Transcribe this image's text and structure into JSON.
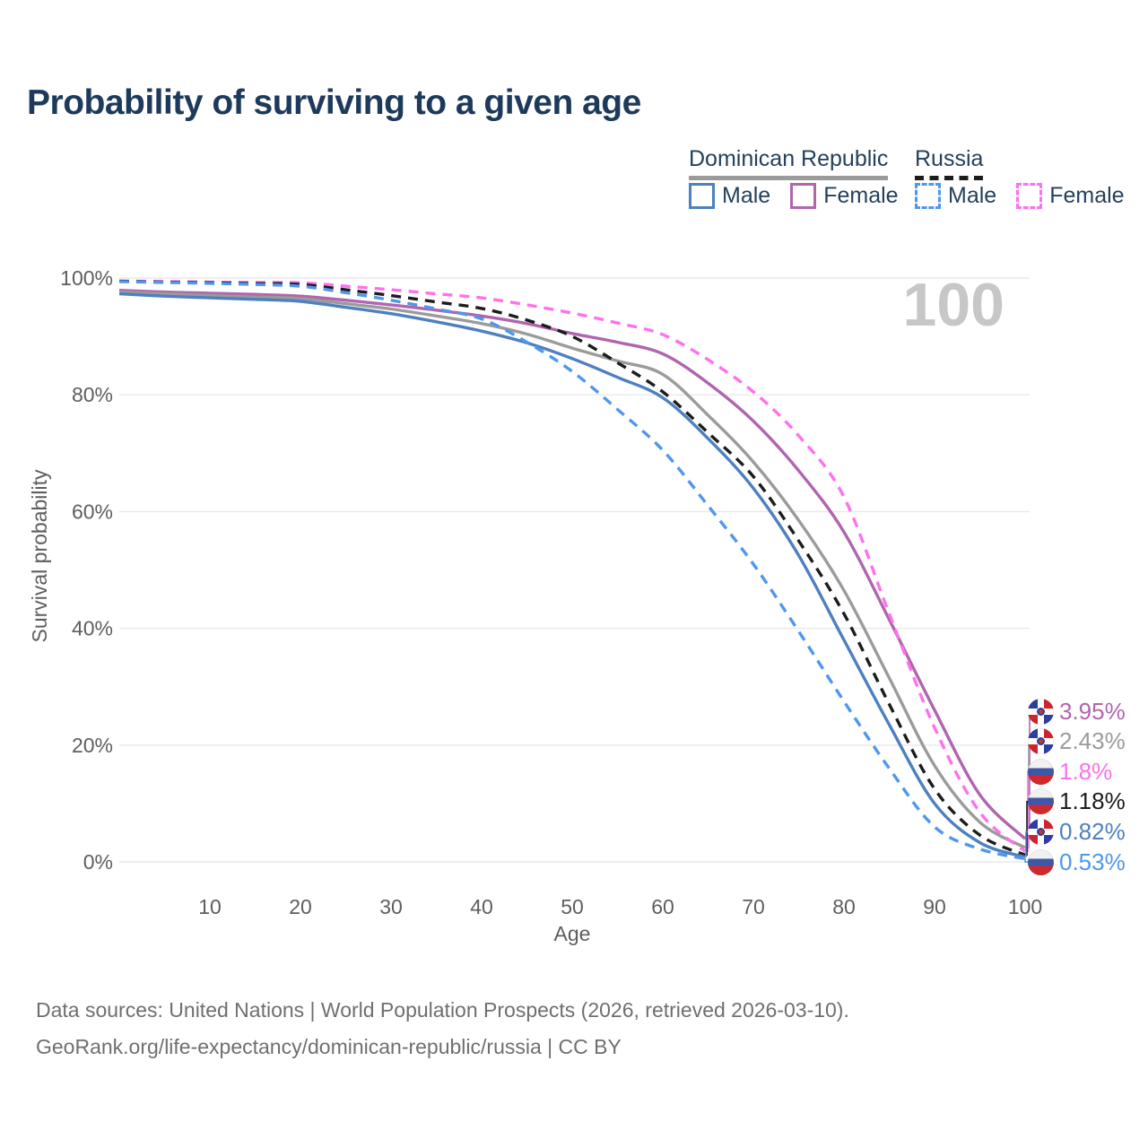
{
  "header": {
    "title": "Probability of surviving to a given age"
  },
  "legend": {
    "groups": [
      {
        "label": "Dominican Republic",
        "line_style": "solid",
        "items": [
          {
            "label": "Male"
          },
          {
            "label": "Female"
          }
        ]
      },
      {
        "label": "Russia",
        "line_style": "dashed",
        "items": [
          {
            "label": "Male"
          },
          {
            "label": "Female"
          }
        ]
      }
    ]
  },
  "chart_data": {
    "type": "line",
    "title": "Probability of surviving to a given age",
    "xlabel": "Age",
    "ylabel": "Survival probability",
    "xlim": [
      0,
      100
    ],
    "ylim": [
      0,
      100
    ],
    "grid": "horizontal-only",
    "x_ticks": [
      10,
      20,
      30,
      40,
      50,
      60,
      70,
      80,
      90,
      100
    ],
    "y_ticks": [
      100,
      80,
      60,
      40,
      20,
      0
    ],
    "y_tick_suffix": "%",
    "legend_position": "top-right",
    "age_counter_watermark": "100",
    "x": [
      0,
      5,
      10,
      15,
      20,
      25,
      30,
      35,
      40,
      45,
      50,
      55,
      60,
      65,
      70,
      75,
      80,
      85,
      90,
      95,
      100
    ],
    "series": [
      {
        "name": "Dominican Republic Female",
        "country": "Dominican Republic",
        "group": "Female",
        "color": "#b065af",
        "dash": false,
        "flag": "do",
        "end_label": "3.95%",
        "values": [
          97.9,
          97.6,
          97.4,
          97.2,
          96.9,
          96.2,
          95.4,
          94.5,
          93.5,
          92.2,
          90.5,
          89.0,
          87.0,
          82.0,
          75.5,
          67.0,
          56.5,
          41.5,
          26.0,
          11.5,
          3.95
        ]
      },
      {
        "name": "Dominican Republic Total",
        "country": "Dominican Republic",
        "group": "Total",
        "color": "#9b9b9b",
        "dash": false,
        "flag": "do",
        "end_label": "2.43%",
        "values": [
          97.6,
          97.3,
          97.0,
          96.75,
          96.5,
          95.6,
          94.7,
          93.5,
          92.2,
          90.4,
          88.0,
          85.8,
          83.5,
          76.5,
          68.5,
          58.5,
          46.5,
          31.5,
          16.5,
          6.8,
          2.43
        ]
      },
      {
        "name": "Russia Female",
        "country": "Russia",
        "group": "Female",
        "color": "#ff70ee",
        "dash": true,
        "flag": "ru",
        "end_label": "1.8%",
        "values": [
          99.5,
          99.4,
          99.3,
          99.25,
          99.2,
          98.6,
          98.0,
          97.3,
          96.6,
          95.4,
          94.0,
          92.3,
          90.3,
          86.0,
          80.5,
          73.0,
          62.5,
          42.5,
          23.0,
          8.5,
          1.8
        ]
      },
      {
        "name": "Russia Total",
        "country": "Russia",
        "group": "Total",
        "color": "#1c1c1c",
        "dash": true,
        "flag": "ru",
        "end_label": "1.18%",
        "values": [
          99.45,
          99.3,
          99.2,
          99.05,
          98.9,
          98.0,
          97.0,
          95.9,
          94.8,
          92.8,
          90.0,
          85.5,
          80.5,
          73.5,
          66.0,
          55.0,
          42.5,
          27.0,
          12.5,
          4.6,
          1.18
        ]
      },
      {
        "name": "Dominican Republic Male",
        "country": "Dominican Republic",
        "group": "Male",
        "color": "#4e80c0",
        "dash": false,
        "flag": "do",
        "end_label": "0.82%",
        "values": [
          97.3,
          96.9,
          96.6,
          96.35,
          96.0,
          95.0,
          93.9,
          92.5,
          90.9,
          88.9,
          86.2,
          83.0,
          79.5,
          72.5,
          64.0,
          52.5,
          38.0,
          23.5,
          10.0,
          3.3,
          0.82
        ]
      },
      {
        "name": "Russia Male",
        "country": "Russia",
        "group": "Male",
        "color": "#4f97ec",
        "dash": true,
        "flag": "ru",
        "end_label": "0.53%",
        "values": [
          99.4,
          99.25,
          99.1,
          98.9,
          98.6,
          97.5,
          96.2,
          94.7,
          93.0,
          89.0,
          84.0,
          77.5,
          70.5,
          61.0,
          51.0,
          39.5,
          27.5,
          16.0,
          6.0,
          2.2,
          0.53
        ]
      }
    ]
  },
  "footer": {
    "line1": "Data sources: United Nations | World Population Prospects (2026, retrieved 2026-03-10).",
    "line2": "GeoRank.org/life-expectancy/dominican-republic/russia | CC BY"
  }
}
